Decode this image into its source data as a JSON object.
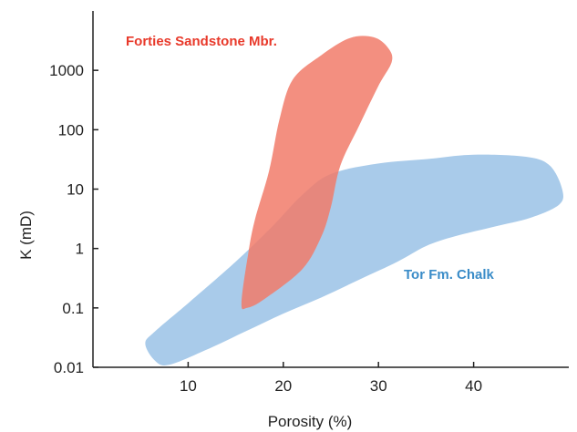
{
  "chart_data": {
    "type": "area",
    "xlabel": "Porosity (%)",
    "ylabel": "K (mD)",
    "xlim": [
      0,
      50
    ],
    "ylim": [
      0.01,
      10000
    ],
    "yscale": "log",
    "xticks": [
      10,
      20,
      30,
      40
    ],
    "xtick_labels": [
      "10",
      "20",
      "30",
      "40"
    ],
    "yticks": [
      0.01,
      0.1,
      1,
      10,
      100,
      1000
    ],
    "ytick_labels": [
      "0.01",
      "0.1",
      "1",
      "10",
      "100",
      "1000"
    ],
    "grid": false,
    "series": [
      {
        "name": "Tor Fm. Chalk",
        "color": "#a9cbea",
        "label_color": "#3a8cc8",
        "outline": [
          [
            5.5,
            0.025
          ],
          [
            6.5,
            0.013
          ],
          [
            8,
            0.011
          ],
          [
            12,
            0.02
          ],
          [
            16,
            0.04
          ],
          [
            20,
            0.08
          ],
          [
            24,
            0.15
          ],
          [
            28,
            0.3
          ],
          [
            32,
            0.6
          ],
          [
            35,
            1.1
          ],
          [
            38,
            1.6
          ],
          [
            42,
            2.3
          ],
          [
            46,
            3.3
          ],
          [
            49,
            5.5
          ],
          [
            49.3,
            10
          ],
          [
            48,
            25
          ],
          [
            45.5,
            35
          ],
          [
            40,
            38
          ],
          [
            35,
            32
          ],
          [
            30,
            27
          ],
          [
            25,
            18
          ],
          [
            22,
            8
          ],
          [
            19,
            2.5
          ],
          [
            15,
            0.6
          ],
          [
            10,
            0.12
          ],
          [
            6.5,
            0.04
          ]
        ]
      },
      {
        "name": "Forties Sandstone Mbr.",
        "color": "#f17b6a",
        "opacity": 0.85,
        "label_color": "#e8392a",
        "outline": [
          [
            15.6,
            0.12
          ],
          [
            16.2,
            0.1
          ],
          [
            18,
            0.14
          ],
          [
            22,
            0.45
          ],
          [
            24,
            1.6
          ],
          [
            25,
            5
          ],
          [
            26,
            25
          ],
          [
            28,
            120
          ],
          [
            30,
            550
          ],
          [
            31.4,
            1400
          ],
          [
            31,
            2400
          ],
          [
            29.5,
            3600
          ],
          [
            27,
            3500
          ],
          [
            24,
            1800
          ],
          [
            21,
            700
          ],
          [
            19.6,
            150
          ],
          [
            18.5,
            20
          ],
          [
            17,
            3
          ],
          [
            16.3,
            0.8
          ]
        ]
      }
    ]
  }
}
